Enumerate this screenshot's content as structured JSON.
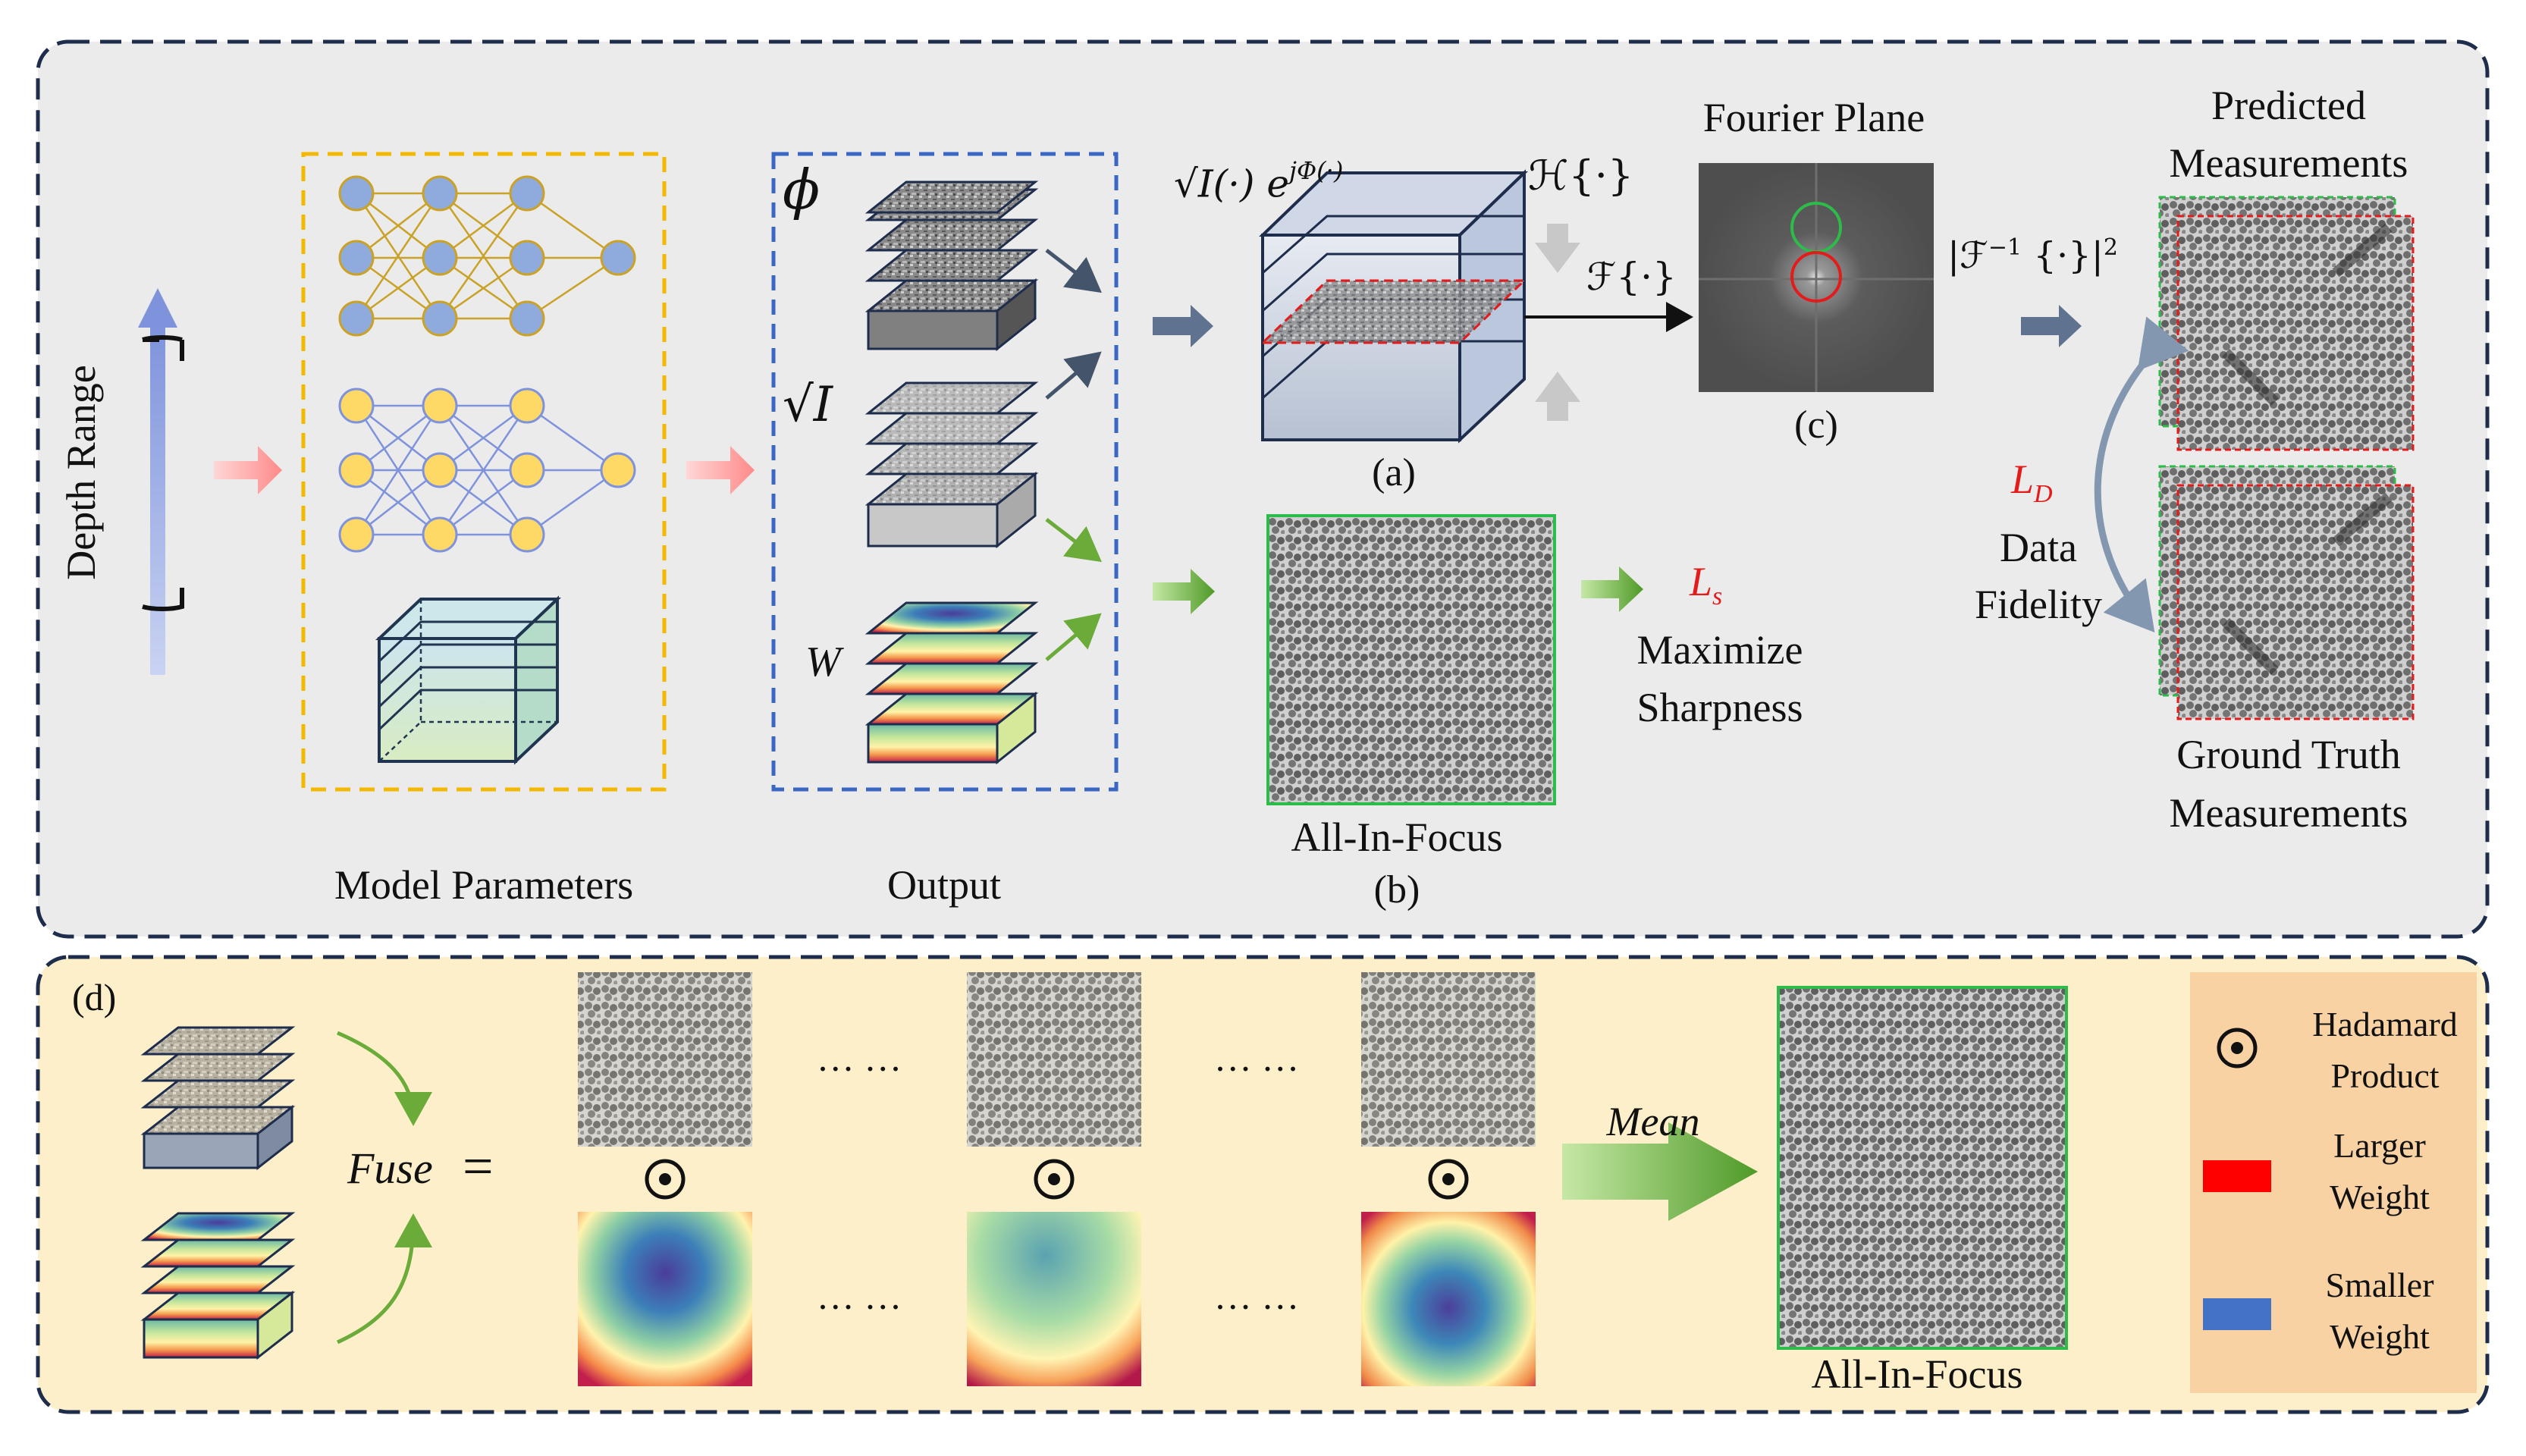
{
  "top_panel": {
    "depth_range": "Depth Range",
    "model_parameters": "Model Parameters",
    "output": "Output",
    "phi_symbol": "ϕ",
    "sqrt_i_symbol": "√I",
    "w_symbol": "W",
    "field_expr": "√I(·) e",
    "field_exp": "jΦ(·)",
    "propagator": "ℋ{·}",
    "fourier_op": "ℱ{·}",
    "fourier_plane": "Fourier Plane",
    "inverse_op": "|ℱ",
    "inverse_sup": "−1",
    "inverse_tail": " {·}|",
    "inverse_pow": "2",
    "label_a": "(a)",
    "label_b": "(b)",
    "label_c": "(c)",
    "all_in_focus": "All-In-Focus",
    "ls_main": "L",
    "ls_sub": "s",
    "maximize": "Maximize",
    "sharpness": "Sharpness",
    "ld_main": "L",
    "ld_sub": "D",
    "data": "Data",
    "fidelity": "Fidelity",
    "predicted_line1": "Predicted",
    "predicted_line2": "Measurements",
    "gt_line1": "Ground Truth",
    "gt_line2": "Measurements"
  },
  "bottom_panel": {
    "label_d": "(d)",
    "fuse": "Fuse",
    "equals": "=",
    "ellipsis": "… …",
    "mean": "Mean",
    "all_in_focus": "All-In-Focus",
    "legend": {
      "hadamard_line1": "Hadamard",
      "hadamard_line2": "Product",
      "larger_line1": "Larger",
      "larger_line2": "Weight",
      "smaller_line1": "Smaller",
      "smaller_line2": "Weight",
      "larger_color": "#ff0000",
      "smaller_color": "#4472c4"
    }
  },
  "colors": {
    "top_bg": "#ebebeb",
    "bottom_bg": "#fcefc9",
    "border": "#1f2d4d",
    "model_box": "#f5b800",
    "output_box": "#3a66c4",
    "neuron_blue": "#8faadc",
    "neuron_yellow": "#ffd966",
    "green": "#6aab3a"
  }
}
